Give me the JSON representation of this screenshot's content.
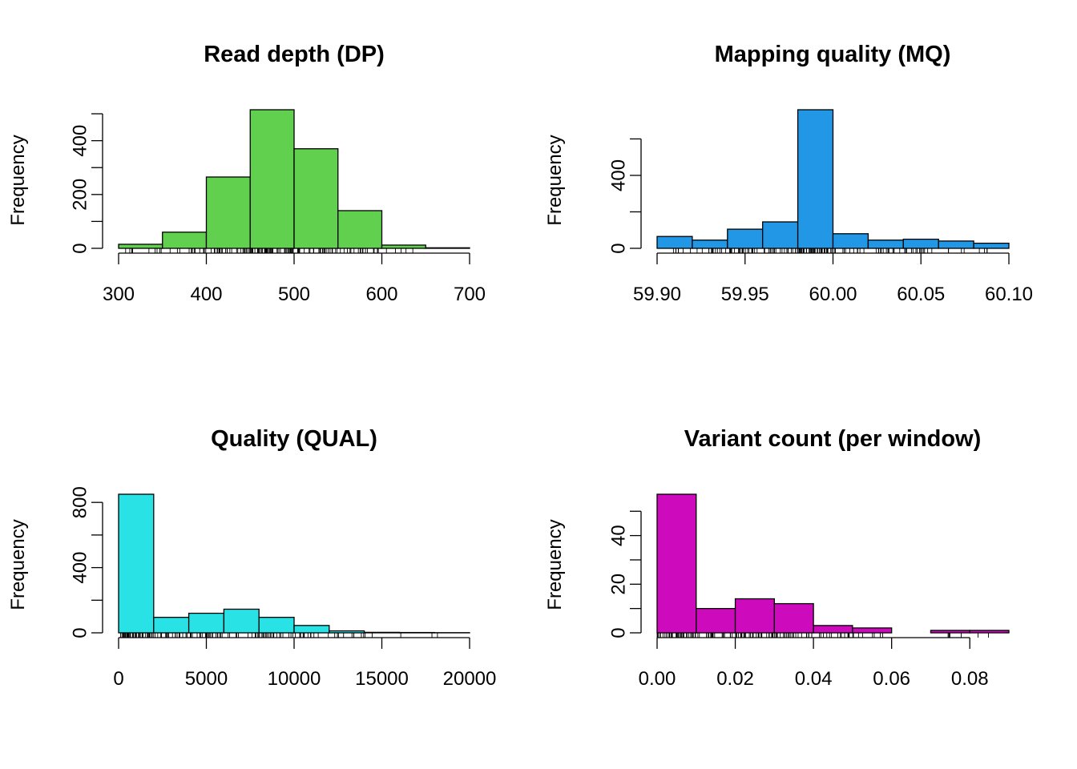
{
  "chart_data": [
    {
      "type": "histogram",
      "title": "Read depth (DP)",
      "ylabel": "Frequency",
      "xlabel": "",
      "color": "#61D04F",
      "bins": [
        {
          "x0": 300,
          "x1": 350,
          "count": 15
        },
        {
          "x0": 350,
          "x1": 400,
          "count": 60
        },
        {
          "x0": 400,
          "x1": 450,
          "count": 265
        },
        {
          "x0": 450,
          "x1": 500,
          "count": 515
        },
        {
          "x0": 500,
          "x1": 550,
          "count": 370
        },
        {
          "x0": 550,
          "x1": 600,
          "count": 140
        },
        {
          "x0": 600,
          "x1": 650,
          "count": 12
        },
        {
          "x0": 650,
          "x1": 700,
          "count": 2
        }
      ],
      "xticks": [
        300,
        400,
        500,
        600,
        700
      ],
      "xtick_labels": [
        "300",
        "400",
        "500",
        "600",
        "700"
      ],
      "yticks": [
        0,
        100,
        200,
        300,
        400,
        500
      ],
      "ytick_labels": [
        "0",
        "",
        "200",
        "",
        "400",
        ""
      ],
      "xlim": [
        300,
        700
      ],
      "ylim": [
        0,
        515
      ],
      "rug_range": [
        306,
        655
      ]
    },
    {
      "type": "histogram",
      "title": "Mapping quality (MQ)",
      "ylabel": "Frequency",
      "xlabel": "",
      "color": "#2297E6",
      "bins": [
        {
          "x0": 59.9,
          "x1": 59.92,
          "count": 65
        },
        {
          "x0": 59.92,
          "x1": 59.94,
          "count": 45
        },
        {
          "x0": 59.94,
          "x1": 59.96,
          "count": 105
        },
        {
          "x0": 59.96,
          "x1": 59.98,
          "count": 145
        },
        {
          "x0": 59.98,
          "x1": 60.0,
          "count": 760
        },
        {
          "x0": 60.0,
          "x1": 60.02,
          "count": 80
        },
        {
          "x0": 60.02,
          "x1": 60.04,
          "count": 45
        },
        {
          "x0": 60.04,
          "x1": 60.06,
          "count": 50
        },
        {
          "x0": 60.06,
          "x1": 60.08,
          "count": 40
        },
        {
          "x0": 60.08,
          "x1": 60.1,
          "count": 28
        }
      ],
      "xticks": [
        59.9,
        59.95,
        60.0,
        60.05,
        60.1
      ],
      "xtick_labels": [
        "59.90",
        "59.95",
        "60.00",
        "60.05",
        "60.10"
      ],
      "yticks": [
        0,
        200,
        400,
        600
      ],
      "ytick_labels": [
        "0",
        "",
        "400",
        ""
      ],
      "xlim": [
        59.9,
        60.1
      ],
      "ylim": [
        0,
        760
      ],
      "rug_range": [
        59.9,
        60.1
      ]
    },
    {
      "type": "histogram",
      "title": "Quality (QUAL)",
      "ylabel": "Frequency",
      "xlabel": "",
      "color": "#28E2E5",
      "bins": [
        {
          "x0": 0,
          "x1": 2000,
          "count": 850
        },
        {
          "x0": 2000,
          "x1": 4000,
          "count": 95
        },
        {
          "x0": 4000,
          "x1": 6000,
          "count": 120
        },
        {
          "x0": 6000,
          "x1": 8000,
          "count": 145
        },
        {
          "x0": 8000,
          "x1": 10000,
          "count": 95
        },
        {
          "x0": 10000,
          "x1": 12000,
          "count": 45
        },
        {
          "x0": 12000,
          "x1": 14000,
          "count": 12
        },
        {
          "x0": 14000,
          "x1": 16000,
          "count": 3
        },
        {
          "x0": 16000,
          "x1": 18000,
          "count": 2
        },
        {
          "x0": 18000,
          "x1": 20000,
          "count": 1
        }
      ],
      "xticks": [
        0,
        5000,
        10000,
        15000,
        20000
      ],
      "xtick_labels": [
        "0",
        "5000",
        "10000",
        "15000",
        "20000"
      ],
      "yticks": [
        0,
        200,
        400,
        600,
        800
      ],
      "ytick_labels": [
        "0",
        "",
        "400",
        "",
        "800"
      ],
      "xlim": [
        0,
        20000
      ],
      "ylim": [
        0,
        850
      ],
      "rug_range": [
        100,
        18200
      ]
    },
    {
      "type": "histogram",
      "title": "Variant count (per window)",
      "ylabel": "Frequency",
      "xlabel": "",
      "color": "#CD0BBC",
      "bins": [
        {
          "x0": 0.0,
          "x1": 0.01,
          "count": 57
        },
        {
          "x0": 0.01,
          "x1": 0.02,
          "count": 10
        },
        {
          "x0": 0.02,
          "x1": 0.03,
          "count": 14
        },
        {
          "x0": 0.03,
          "x1": 0.04,
          "count": 12
        },
        {
          "x0": 0.04,
          "x1": 0.05,
          "count": 3
        },
        {
          "x0": 0.05,
          "x1": 0.06,
          "count": 2
        },
        {
          "x0": 0.06,
          "x1": 0.07,
          "count": 0
        },
        {
          "x0": 0.07,
          "x1": 0.08,
          "count": 1
        },
        {
          "x0": 0.08,
          "x1": 0.09,
          "count": 1
        }
      ],
      "xticks": [
        0.0,
        0.02,
        0.04,
        0.06,
        0.08
      ],
      "xtick_labels": [
        "0.00",
        "0.02",
        "0.04",
        "0.06",
        "0.08"
      ],
      "yticks": [
        0,
        10,
        20,
        30,
        40,
        50
      ],
      "ytick_labels": [
        "0",
        "",
        "20",
        "",
        "40",
        ""
      ],
      "xlim": [
        0.0,
        0.09
      ],
      "ylim": [
        0,
        57
      ],
      "rug_range": [
        0.0,
        0.085
      ]
    }
  ]
}
